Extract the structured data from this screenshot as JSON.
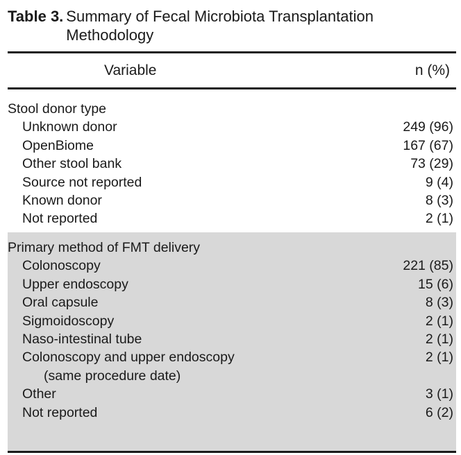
{
  "caption": {
    "label": "Table 3.",
    "title": "Summary of Fecal Microbiota Transplantation Methodology"
  },
  "header": {
    "variable": "Variable",
    "n_pct": "n (%)"
  },
  "stool_donor": {
    "title": "Stool donor type",
    "rows": [
      {
        "label": "Unknown donor",
        "value": "249 (96)"
      },
      {
        "label": "OpenBiome",
        "value": "167 (67)"
      },
      {
        "label": "Other stool bank",
        "value": "73 (29)"
      },
      {
        "label": "Source not reported",
        "value": "9 (4)"
      },
      {
        "label": "Known donor",
        "value": "8 (3)"
      },
      {
        "label": "Not reported",
        "value": "2 (1)"
      }
    ]
  },
  "delivery": {
    "title": "Primary method of FMT delivery",
    "rows": [
      {
        "label": "Colonoscopy",
        "value": "221 (85)"
      },
      {
        "label": "Upper endoscopy",
        "value": "15 (6)"
      },
      {
        "label": "Oral capsule",
        "value": "8 (3)"
      },
      {
        "label": "Sigmoidoscopy",
        "value": "2 (1)"
      },
      {
        "label": "Naso-intestinal tube",
        "value": "2 (1)"
      },
      {
        "label": "Colonoscopy and upper endoscopy",
        "value": "2 (1)"
      },
      {
        "label": "(same procedure date)"
      },
      {
        "label": "Other",
        "value": "3 (1)"
      },
      {
        "label": "Not reported",
        "value": "6 (2)"
      }
    ]
  }
}
